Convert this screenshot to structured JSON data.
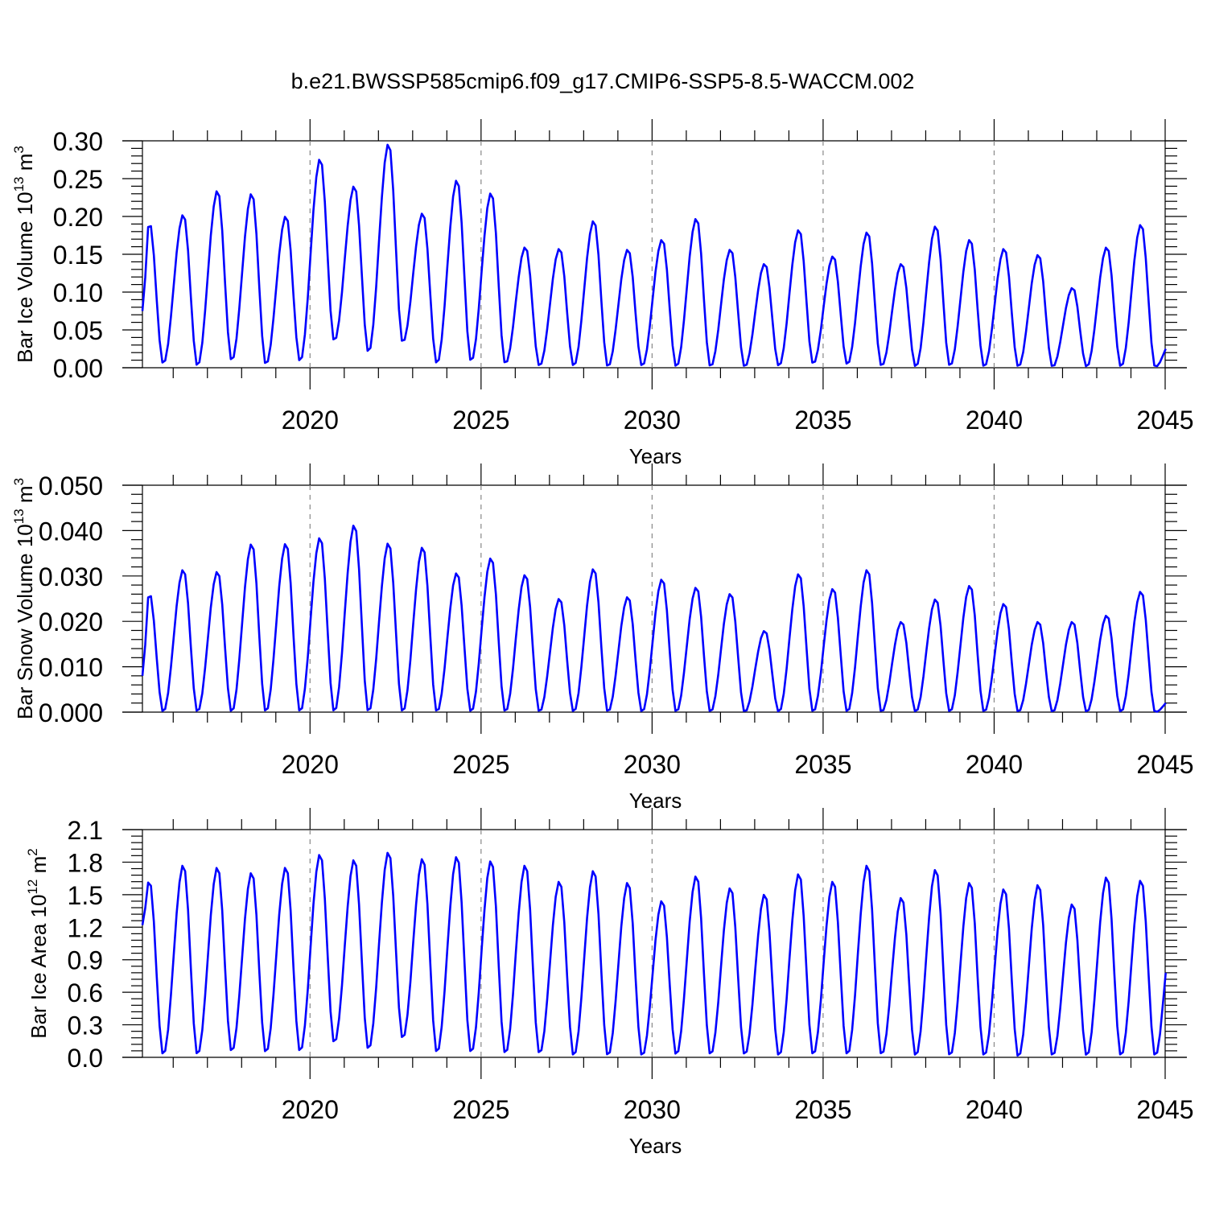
{
  "figure_title": "b.e21.BWSSP585cmip6.f09_g17.CMIP6-SSP5-8.5-WACCM.002",
  "colors": {
    "series": "#0000ff",
    "axis": "#000000",
    "grid": "#888888"
  },
  "chart_data": [
    {
      "type": "line",
      "title": "b.e21.BWSSP585cmip6.f09_g17.CMIP6-SSP5-8.5-WACCM.002",
      "xlabel": "Years",
      "ylabel_main": "Bar Ice Volume 10",
      "ylabel_exp": "13",
      "ylabel_unit": " m",
      "ylabel_unit_exp": "3",
      "xlim": [
        2015.1,
        2045.0
      ],
      "ylim": [
        0.0,
        0.3
      ],
      "xticks": [
        2020,
        2025,
        2030,
        2035,
        2040,
        2045
      ],
      "xtick_labels": [
        "2020",
        "2025",
        "2030",
        "2035",
        "2040",
        "2045"
      ],
      "yticks": [
        0.0,
        0.05,
        0.1,
        0.15,
        0.2,
        0.25,
        0.3
      ],
      "ytick_labels": [
        "0.00",
        "0.05",
        "0.10",
        "0.15",
        "0.20",
        "0.25",
        "0.30"
      ],
      "series_name": "Bar Ice Volume",
      "annual_min": [
        0.005,
        0.002,
        0.009,
        0.004,
        0.008,
        0.035,
        0.02,
        0.033,
        0.005,
        0.008,
        0.005,
        0.002,
        0.002,
        0.001,
        0.002,
        0.001,
        0.001,
        0.001,
        0.002,
        0.005,
        0.004,
        0.002,
        0.001,
        0.002,
        0.001,
        0.001,
        0.001,
        0.001,
        0.001,
        0.001
      ],
      "annual_max": [
        0.194,
        0.203,
        0.235,
        0.231,
        0.201,
        0.277,
        0.241,
        0.297,
        0.205,
        0.249,
        0.232,
        0.16,
        0.158,
        0.195,
        0.157,
        0.17,
        0.198,
        0.157,
        0.138,
        0.183,
        0.148,
        0.18,
        0.138,
        0.188,
        0.17,
        0.158,
        0.15,
        0.106,
        0.16,
        0.19
      ],
      "start_value": 0.075,
      "end_value": 0.025
    },
    {
      "type": "line",
      "xlabel": "Years",
      "ylabel_main": "Bar Snow Volume 10",
      "ylabel_exp": "13",
      "ylabel_unit": " m",
      "ylabel_unit_exp": "3",
      "xlim": [
        2015.1,
        2045.0
      ],
      "ylim": [
        0.0,
        0.05
      ],
      "xticks": [
        2020,
        2025,
        2030,
        2035,
        2040,
        2045
      ],
      "xtick_labels": [
        "2020",
        "2025",
        "2030",
        "2035",
        "2040",
        "2045"
      ],
      "yticks": [
        0.0,
        0.01,
        0.02,
        0.03,
        0.04,
        0.05
      ],
      "ytick_labels": [
        "0.000",
        "0.010",
        "0.020",
        "0.030",
        "0.040",
        "0.050"
      ],
      "series_name": "Bar Snow Volume",
      "annual_min": [
        0.0,
        0.0,
        0.0,
        0.0,
        0.0,
        0.0,
        0.0,
        0.0,
        0.0,
        0.0,
        0.0,
        0.0,
        0.0,
        0.0,
        0.0,
        0.0,
        0.0,
        0.0,
        0.0,
        0.0,
        0.0,
        0.0,
        0.0,
        0.0,
        0.0,
        0.0,
        0.0,
        0.0,
        0.0,
        0.0
      ],
      "annual_max": [
        0.0265,
        0.0315,
        0.0311,
        0.0372,
        0.0373,
        0.0386,
        0.0414,
        0.0374,
        0.0365,
        0.0308,
        0.0341,
        0.0304,
        0.0251,
        0.0317,
        0.0255,
        0.0294,
        0.0276,
        0.0262,
        0.018,
        0.0306,
        0.0273,
        0.0315,
        0.02,
        0.025,
        0.028,
        0.024,
        0.02,
        0.02,
        0.0214,
        0.0267
      ],
      "start_value": 0.008,
      "end_value": 0.002
    },
    {
      "type": "line",
      "xlabel": "Years",
      "ylabel_main": "Bar Ice Area 10",
      "ylabel_exp": "12",
      "ylabel_unit": " m",
      "ylabel_unit_exp": "2",
      "xlim": [
        2015.1,
        2045.0
      ],
      "ylim": [
        0.0,
        2.1
      ],
      "xticks": [
        2020,
        2025,
        2030,
        2035,
        2040,
        2045
      ],
      "xtick_labels": [
        "2020",
        "2025",
        "2030",
        "2035",
        "2040",
        "2045"
      ],
      "yticks": [
        0.0,
        0.3,
        0.6,
        0.9,
        1.2,
        1.5,
        1.8,
        2.1
      ],
      "ytick_labels": [
        "0.0",
        "0.3",
        "0.6",
        "0.9",
        "1.2",
        "1.5",
        "1.8",
        "2.1"
      ],
      "series_name": "Bar Ice Area",
      "annual_min": [
        0.02,
        0.02,
        0.05,
        0.04,
        0.05,
        0.13,
        0.07,
        0.17,
        0.04,
        0.04,
        0.03,
        0.03,
        0.01,
        0.01,
        0.01,
        0.02,
        0.02,
        0.02,
        0.01,
        0.02,
        0.02,
        0.02,
        0.01,
        0.01,
        0.01,
        0.0,
        0.01,
        0.01,
        0.01,
        0.01
      ],
      "annual_max": [
        1.64,
        1.78,
        1.76,
        1.71,
        1.76,
        1.88,
        1.83,
        1.9,
        1.84,
        1.86,
        1.82,
        1.78,
        1.63,
        1.73,
        1.62,
        1.45,
        1.68,
        1.57,
        1.51,
        1.7,
        1.63,
        1.78,
        1.48,
        1.74,
        1.62,
        1.56,
        1.6,
        1.42,
        1.67,
        1.64
      ],
      "start_value": 1.22,
      "end_value": 0.78
    }
  ]
}
